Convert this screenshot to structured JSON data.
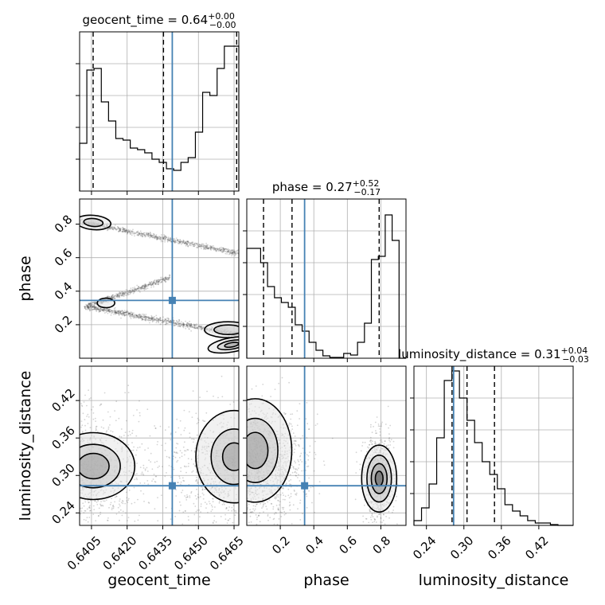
{
  "chart_data": {
    "type": "corner",
    "parameters": [
      {
        "key": "geocent_time",
        "axis_label": "geocent_time",
        "title": "geocent_time = 0.64",
        "sup": "+0.00",
        "sub": "−0.00",
        "range": [
          0.64,
          0.6467
        ],
        "ticks": [
          0.6405,
          0.642,
          0.6435,
          0.645,
          0.6465
        ],
        "tick_labels": [
          "0.6405",
          "0.6420",
          "0.6435",
          "0.6450",
          "0.6465"
        ],
        "injection": 0.6439,
        "quantiles": [
          0.64057,
          0.64353,
          0.64661
        ],
        "hist": [
          0.3,
          0.76,
          0.77,
          0.56,
          0.44,
          0.33,
          0.32,
          0.27,
          0.26,
          0.24,
          0.2,
          0.18,
          0.14,
          0.13,
          0.18,
          0.21,
          0.37,
          0.62,
          0.6,
          0.77,
          0.91,
          0.91
        ]
      },
      {
        "key": "phase",
        "axis_label": "phase",
        "title": "phase = 0.27",
        "sup": "+0.52",
        "sub": "−0.17",
        "range": [
          0.0,
          0.95
        ],
        "ticks": [
          0.2,
          0.4,
          0.6,
          0.8
        ],
        "tick_labels": [
          "0.2",
          "0.4",
          "0.6",
          "0.8"
        ],
        "injection": 0.345,
        "quantiles": [
          0.1,
          0.27,
          0.79
        ],
        "hist": [
          0.69,
          0.69,
          0.6,
          0.45,
          0.38,
          0.35,
          0.32,
          0.21,
          0.17,
          0.1,
          0.05,
          0.015,
          0.005,
          0.005,
          0.03,
          0.02,
          0.1,
          0.22,
          0.62,
          0.64,
          0.9,
          0.74,
          0.0
        ]
      },
      {
        "key": "luminosity_distance",
        "axis_label": "luminosity_distance",
        "title": "luminosity_distance = 0.31",
        "sup": "+0.04",
        "sub": "−0.03",
        "range": [
          0.22,
          0.475
        ],
        "ticks": [
          0.24,
          0.3,
          0.36,
          0.42
        ],
        "tick_labels": [
          "0.24",
          "0.30",
          "0.36",
          "0.42"
        ],
        "injection": 0.2835,
        "quantiles": [
          0.281,
          0.305,
          0.349
        ],
        "hist": [
          0.03,
          0.11,
          0.26,
          0.55,
          0.91,
          0.97,
          0.8,
          0.66,
          0.52,
          0.4,
          0.32,
          0.23,
          0.13,
          0.09,
          0.06,
          0.03,
          0.015,
          0.015,
          0.005,
          0.0,
          0.0
        ]
      }
    ],
    "marker_color": "#4682b4",
    "grid": true
  }
}
